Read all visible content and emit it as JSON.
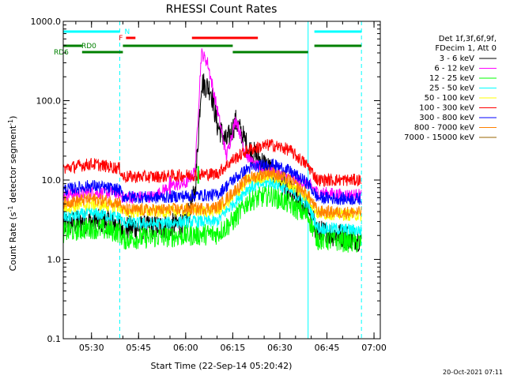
{
  "chart_data": {
    "type": "line",
    "title": "RHESSI Count Rates",
    "xlabel": "Start Time (22-Sep-14 05:20:42)",
    "ylabel_main": "Count Rate (s",
    "ylabel_sup1": "-1",
    "ylabel_mid": " detector segment",
    "ylabel_sup2": "-1",
    "ylabel_end": ")",
    "x_range_minutes": [
      "05:21",
      "07:02"
    ],
    "x_ticks": [
      {
        "t": "05:30",
        "label": "05:30"
      },
      {
        "t": "05:45",
        "label": "05:45"
      },
      {
        "t": "06:00",
        "label": "06:00"
      },
      {
        "t": "06:15",
        "label": "06:15"
      },
      {
        "t": "06:30",
        "label": "06:30"
      },
      {
        "t": "06:45",
        "label": "06:45"
      },
      {
        "t": "07:00",
        "label": "07:00"
      }
    ],
    "y_scale": "log",
    "y_range": [
      0.1,
      1000
    ],
    "y_ticks": [
      {
        "v": 0.1,
        "label": "0.1"
      },
      {
        "v": 1,
        "label": "1.0"
      },
      {
        "v": 10,
        "label": "10.0"
      },
      {
        "v": 100,
        "label": "100.0"
      },
      {
        "v": 1000,
        "label": "1000.0"
      }
    ],
    "legend": {
      "position": "right",
      "header1": "Det 1f,3f,6f,9f,",
      "header2": "FDecim 1, Att 0"
    },
    "series": [
      {
        "name": "3 - 6 keV",
        "color": "#000000",
        "points": [
          [
            "05:21",
            2.8
          ],
          [
            "05:30",
            3.0
          ],
          [
            "05:35",
            3.0
          ],
          [
            "05:39",
            2.7
          ],
          [
            "05:40",
            2.5
          ],
          [
            "05:45",
            2.5
          ],
          [
            "05:55",
            2.6
          ],
          [
            "06:00",
            3.0
          ],
          [
            "06:03",
            7.0
          ],
          [
            "06:05",
            170
          ],
          [
            "06:08",
            140
          ],
          [
            "06:10",
            50
          ],
          [
            "06:13",
            30
          ],
          [
            "06:16",
            55
          ],
          [
            "06:20",
            25
          ],
          [
            "06:25",
            16
          ],
          [
            "06:30",
            10
          ],
          [
            "06:35",
            6
          ],
          [
            "06:39",
            4.5
          ],
          [
            "06:42",
            2.2
          ],
          [
            "06:50",
            2.0
          ],
          [
            "06:56",
            1.8
          ]
        ]
      },
      {
        "name": "6 - 12 keV",
        "color": "#ff00ff",
        "points": [
          [
            "05:21",
            6.5
          ],
          [
            "05:30",
            7.0
          ],
          [
            "05:39",
            6.8
          ],
          [
            "05:40",
            6.0
          ],
          [
            "05:50",
            6.2
          ],
          [
            "05:55",
            8.5
          ],
          [
            "06:00",
            9.0
          ],
          [
            "06:03",
            13
          ],
          [
            "06:05",
            400
          ],
          [
            "06:07",
            300
          ],
          [
            "06:10",
            80
          ],
          [
            "06:13",
            20
          ],
          [
            "06:16",
            60
          ],
          [
            "06:19",
            22
          ],
          [
            "06:22",
            15
          ],
          [
            "06:30",
            12
          ],
          [
            "06:35",
            10
          ],
          [
            "06:39",
            9
          ],
          [
            "06:42",
            7
          ],
          [
            "06:50",
            6.5
          ],
          [
            "06:56",
            6.5
          ]
        ]
      },
      {
        "name": "12 - 25 keV",
        "color": "#00ff00",
        "points": [
          [
            "05:21",
            2.2
          ],
          [
            "05:30",
            2.5
          ],
          [
            "05:39",
            2.2
          ],
          [
            "05:40",
            1.8
          ],
          [
            "05:50",
            1.9
          ],
          [
            "06:00",
            2.0
          ],
          [
            "06:10",
            2.1
          ],
          [
            "06:15",
            3.0
          ],
          [
            "06:20",
            5.5
          ],
          [
            "06:27",
            6.5
          ],
          [
            "06:33",
            5.0
          ],
          [
            "06:39",
            3.5
          ],
          [
            "06:42",
            1.8
          ],
          [
            "06:50",
            1.7
          ],
          [
            "06:56",
            1.6
          ]
        ]
      },
      {
        "name": "25 - 50 keV",
        "color": "#00ffff",
        "points": [
          [
            "05:21",
            3.4
          ],
          [
            "05:30",
            3.8
          ],
          [
            "05:39",
            3.4
          ],
          [
            "05:40",
            2.9
          ],
          [
            "05:50",
            2.8
          ],
          [
            "06:00",
            3.0
          ],
          [
            "06:10",
            3.0
          ],
          [
            "06:15",
            5.0
          ],
          [
            "06:20",
            8.0
          ],
          [
            "06:27",
            9.5
          ],
          [
            "06:33",
            7.5
          ],
          [
            "06:39",
            5.0
          ],
          [
            "06:42",
            2.5
          ],
          [
            "06:50",
            2.4
          ],
          [
            "06:56",
            2.3
          ]
        ]
      },
      {
        "name": "50 - 100 keV",
        "color": "#ffff00",
        "points": [
          [
            "05:21",
            4.5
          ],
          [
            "05:30",
            5.0
          ],
          [
            "05:39",
            4.6
          ],
          [
            "05:40",
            4.0
          ],
          [
            "05:50",
            4.0
          ],
          [
            "06:00",
            4.1
          ],
          [
            "06:10",
            4.1
          ],
          [
            "06:15",
            6.0
          ],
          [
            "06:20",
            10
          ],
          [
            "06:27",
            11.5
          ],
          [
            "06:33",
            9.0
          ],
          [
            "06:39",
            6.0
          ],
          [
            "06:42",
            3.8
          ],
          [
            "06:50",
            3.7
          ],
          [
            "06:56",
            3.6
          ]
        ]
      },
      {
        "name": "100 - 300 keV",
        "color": "#ff0000",
        "points": [
          [
            "05:21",
            14
          ],
          [
            "05:30",
            16
          ],
          [
            "05:39",
            14
          ],
          [
            "05:40",
            11
          ],
          [
            "05:50",
            11
          ],
          [
            "06:00",
            11.5
          ],
          [
            "06:10",
            12
          ],
          [
            "06:15",
            18
          ],
          [
            "06:20",
            24
          ],
          [
            "06:27",
            28
          ],
          [
            "06:33",
            24
          ],
          [
            "06:39",
            15
          ],
          [
            "06:42",
            10
          ],
          [
            "06:50",
            10
          ],
          [
            "06:56",
            10
          ]
        ]
      },
      {
        "name": "300 - 800 keV",
        "color": "#0000ff",
        "points": [
          [
            "05:21",
            7.5
          ],
          [
            "05:30",
            8.5
          ],
          [
            "05:39",
            7.5
          ],
          [
            "05:40",
            6.2
          ],
          [
            "05:50",
            6.0
          ],
          [
            "06:00",
            6.3
          ],
          [
            "06:10",
            6.5
          ],
          [
            "06:15",
            10
          ],
          [
            "06:20",
            14
          ],
          [
            "06:27",
            16
          ],
          [
            "06:33",
            13
          ],
          [
            "06:39",
            9.0
          ],
          [
            "06:42",
            6.0
          ],
          [
            "06:50",
            5.8
          ],
          [
            "06:56",
            5.8
          ]
        ]
      },
      {
        "name": "800 - 7000 keV",
        "color": "#ff8000",
        "points": [
          [
            "05:21",
            5.2
          ],
          [
            "05:30",
            5.8
          ],
          [
            "05:39",
            5.2
          ],
          [
            "05:40",
            4.2
          ],
          [
            "05:50",
            4.2
          ],
          [
            "06:00",
            4.3
          ],
          [
            "06:10",
            4.5
          ],
          [
            "06:15",
            7.0
          ],
          [
            "06:20",
            10.5
          ],
          [
            "06:27",
            12.5
          ],
          [
            "06:33",
            10
          ],
          [
            "06:39",
            6.5
          ],
          [
            "06:42",
            4.0
          ],
          [
            "06:50",
            3.9
          ],
          [
            "06:56",
            3.9
          ]
        ]
      },
      {
        "name": "7000 - 15000 keV",
        "color": "#996600",
        "points": []
      }
    ],
    "flags": [
      {
        "label": "N",
        "color": "#00ffff",
        "segments": [
          [
            "05:21",
            "05:39"
          ],
          [
            "06:41",
            "06:56"
          ]
        ]
      },
      {
        "label": "F",
        "color": "#ff0000",
        "segments": [
          [
            "05:41",
            "05:44"
          ],
          [
            "06:02",
            "06:23"
          ]
        ]
      },
      {
        "label": "RD0",
        "color": "#008000",
        "segments": [
          [
            "05:21",
            "05:27"
          ],
          [
            "05:40",
            "06:15"
          ],
          [
            "06:41",
            "06:56"
          ]
        ]
      },
      {
        "label": "RD6",
        "color": "#008000",
        "segments": [
          [
            "05:27",
            "05:40"
          ],
          [
            "06:15",
            "06:39"
          ]
        ]
      }
    ],
    "vlines": [
      {
        "t": "05:21",
        "style": "solid",
        "color": "#00ffff"
      },
      {
        "t": "05:39",
        "style": "dashed",
        "color": "#00ffff"
      },
      {
        "t": "06:39",
        "style": "solid",
        "color": "#00ffff"
      },
      {
        "t": "06:56",
        "style": "dashed",
        "color": "#00ffff"
      }
    ],
    "spikes": [
      {
        "t": "05:55",
        "v": 11,
        "color": "#ff00ff"
      },
      {
        "t": "06:04",
        "v": 15,
        "color": "#00ff00"
      }
    ]
  },
  "footer": {
    "timestamp": "20-Oct-2021 07:11"
  }
}
